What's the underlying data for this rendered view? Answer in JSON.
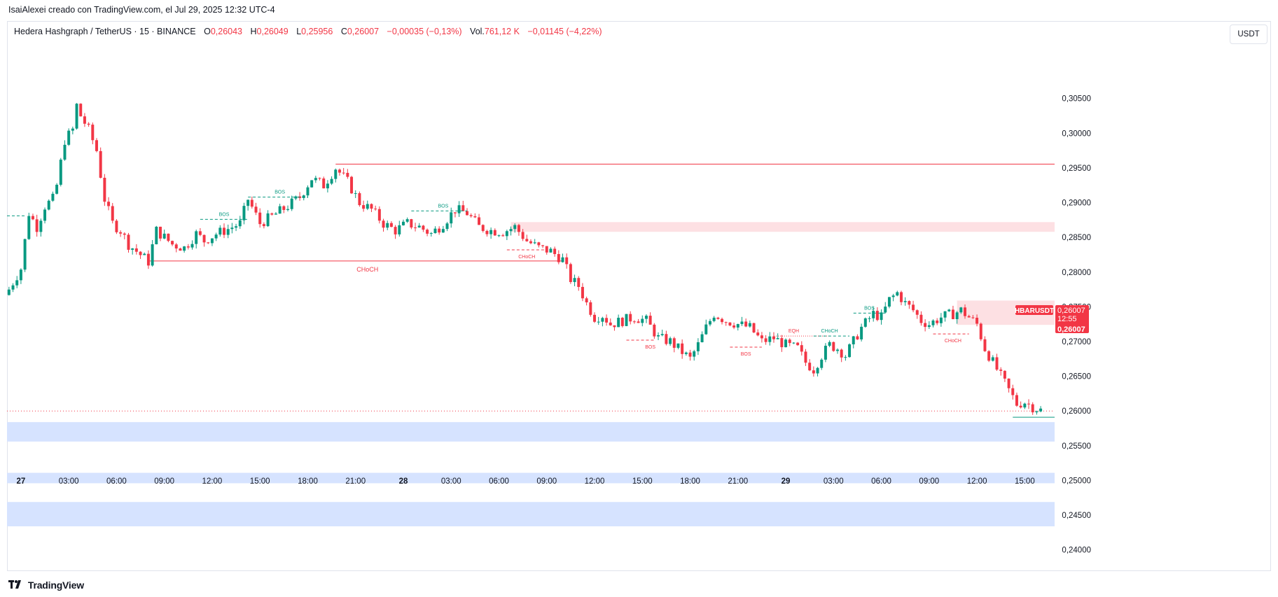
{
  "header": {
    "caption": "IsaiAlexei creado con TradingView.com, el Jul 29, 2025 12:32 UTC-4"
  },
  "legend": {
    "symbol": "Hedera Hashgraph / TetherUS · 15 · BINANCE",
    "open_label": "O",
    "open": "0,26043",
    "high_label": "H",
    "high": "0,26049",
    "low_label": "L",
    "low": "0,25956",
    "close_label": "C",
    "close": "0,26007",
    "change": "−0,00035 (−0,13%)",
    "vol_label": "Vol.",
    "vol": "761,12 K",
    "vol_change": "−0,01145 (−4,22%)"
  },
  "unit_button": "USDT",
  "price_tag": {
    "ticker": "HBARUSDT",
    "price": "0,26007",
    "countdown": "12:55",
    "last": "0,26007"
  },
  "footer": {
    "brand": "TradingView"
  },
  "colors": {
    "up": "#089981",
    "down": "#f23645",
    "supply_zone": "#fde0e3",
    "demand_zone": "#d6e3ff",
    "grid": "#ffffff"
  },
  "chart_data": {
    "type": "candlestick",
    "y_ticks": [
      "0,30500",
      "0,30000",
      "0,29500",
      "0,29000",
      "0,28500",
      "0,28000",
      "0,27500",
      "0,27000",
      "0,26500",
      "0,26000",
      "0,25500",
      "0,25000",
      "0,24500",
      "0,24000"
    ],
    "y_tick_values": [
      0.305,
      0.3,
      0.295,
      0.29,
      0.285,
      0.28,
      0.275,
      0.27,
      0.265,
      0.26,
      0.255,
      0.25,
      0.245,
      0.24
    ],
    "ylim": [
      0.23695,
      0.31615
    ],
    "x_ticks": [
      {
        "label": "27",
        "bold": true,
        "bar": 3
      },
      {
        "label": "03:00",
        "bar": 15
      },
      {
        "label": "06:00",
        "bar": 27
      },
      {
        "label": "09:00",
        "bar": 39
      },
      {
        "label": "12:00",
        "bar": 51
      },
      {
        "label": "15:00",
        "bar": 63
      },
      {
        "label": "18:00",
        "bar": 75
      },
      {
        "label": "21:00",
        "bar": 87
      },
      {
        "label": "28",
        "bold": true,
        "bar": 99
      },
      {
        "label": "03:00",
        "bar": 111
      },
      {
        "label": "06:00",
        "bar": 123
      },
      {
        "label": "09:00",
        "bar": 135
      },
      {
        "label": "12:00",
        "bar": 147
      },
      {
        "label": "15:00",
        "bar": 159
      },
      {
        "label": "18:00",
        "bar": 171
      },
      {
        "label": "21:00",
        "bar": 183
      },
      {
        "label": "29",
        "bold": true,
        "bar": 195
      },
      {
        "label": "03:00",
        "bar": 207
      },
      {
        "label": "06:00",
        "bar": 219
      },
      {
        "label": "09:00",
        "bar": 231
      },
      {
        "label": "12:00",
        "bar": 243
      },
      {
        "label": "15:00",
        "bar": 255
      }
    ],
    "bar_range": [
      0,
      263
    ],
    "close_path": [
      [
        0,
        0.2775
      ],
      [
        3,
        0.2805
      ],
      [
        5,
        0.2885
      ],
      [
        7,
        0.2865
      ],
      [
        9,
        0.2895
      ],
      [
        11,
        0.2905
      ],
      [
        12,
        0.2925
      ],
      [
        14,
        0.299
      ],
      [
        16,
        0.3005
      ],
      [
        17,
        0.304
      ],
      [
        18,
        0.3025
      ],
      [
        20,
        0.3005
      ],
      [
        22,
        0.2975
      ],
      [
        24,
        0.2905
      ],
      [
        26,
        0.287
      ],
      [
        28,
        0.286
      ],
      [
        30,
        0.284
      ],
      [
        32,
        0.283
      ],
      [
        35,
        0.2815
      ],
      [
        37,
        0.286
      ],
      [
        39,
        0.285
      ],
      [
        41,
        0.284
      ],
      [
        44,
        0.2835
      ],
      [
        47,
        0.2855
      ],
      [
        49,
        0.2845
      ],
      [
        52,
        0.2855
      ],
      [
        55,
        0.2862
      ],
      [
        58,
        0.287
      ],
      [
        60,
        0.2905
      ],
      [
        63,
        0.287
      ],
      [
        66,
        0.288
      ],
      [
        70,
        0.2895
      ],
      [
        73,
        0.2908
      ],
      [
        76,
        0.2935
      ],
      [
        79,
        0.2925
      ],
      [
        82,
        0.295
      ],
      [
        85,
        0.293
      ],
      [
        88,
        0.29
      ],
      [
        91,
        0.289
      ],
      [
        94,
        0.287
      ],
      [
        97,
        0.286
      ],
      [
        100,
        0.287
      ],
      [
        103,
        0.2865
      ],
      [
        106,
        0.2855
      ],
      [
        109,
        0.287
      ],
      [
        112,
        0.289
      ],
      [
        115,
        0.2885
      ],
      [
        118,
        0.2865
      ],
      [
        121,
        0.286
      ],
      [
        124,
        0.2858
      ],
      [
        127,
        0.2865
      ],
      [
        130,
        0.2845
      ],
      [
        133,
        0.2835
      ],
      [
        136,
        0.283
      ],
      [
        139,
        0.2818
      ],
      [
        141,
        0.279
      ],
      [
        143,
        0.278
      ],
      [
        145,
        0.2755
      ],
      [
        147,
        0.2735
      ],
      [
        149,
        0.2738
      ],
      [
        151,
        0.2725
      ],
      [
        154,
        0.273
      ],
      [
        157,
        0.2735
      ],
      [
        160,
        0.273
      ],
      [
        163,
        0.2705
      ],
      [
        166,
        0.27
      ],
      [
        169,
        0.2685
      ],
      [
        171,
        0.2675
      ],
      [
        173,
        0.2695
      ],
      [
        175,
        0.272
      ],
      [
        177,
        0.274
      ],
      [
        180,
        0.273
      ],
      [
        183,
        0.2725
      ],
      [
        186,
        0.272
      ],
      [
        189,
        0.27
      ],
      [
        192,
        0.2705
      ],
      [
        195,
        0.2695
      ],
      [
        198,
        0.269
      ],
      [
        200,
        0.267
      ],
      [
        202,
        0.266
      ],
      [
        204,
        0.268
      ],
      [
        206,
        0.2695
      ],
      [
        208,
        0.269
      ],
      [
        210,
        0.268
      ],
      [
        212,
        0.27
      ],
      [
        214,
        0.272
      ],
      [
        217,
        0.274
      ],
      [
        219,
        0.2735
      ],
      [
        221,
        0.276
      ],
      [
        223,
        0.277
      ],
      [
        225,
        0.2755
      ],
      [
        227,
        0.2745
      ],
      [
        229,
        0.273
      ],
      [
        231,
        0.2725
      ],
      [
        234,
        0.2735
      ],
      [
        237,
        0.274
      ],
      [
        239,
        0.2745
      ],
      [
        241,
        0.2735
      ],
      [
        243,
        0.2725
      ],
      [
        245,
        0.269
      ],
      [
        247,
        0.267
      ],
      [
        249,
        0.265
      ],
      [
        251,
        0.263
      ],
      [
        253,
        0.261
      ],
      [
        255,
        0.2613
      ],
      [
        257,
        0.2606
      ],
      [
        259,
        0.2601
      ]
    ],
    "zones": [
      {
        "kind": "supply",
        "from_bar": 126,
        "to_bar": 263,
        "top": 0.2872,
        "bottom": 0.2858
      },
      {
        "kind": "supply",
        "from_bar": 238,
        "to_bar": 263,
        "top": 0.2759,
        "bottom": 0.2724
      },
      {
        "kind": "demand",
        "from_bar": 0,
        "to_bar": 263,
        "top": 0.2584,
        "bottom": 0.2556
      },
      {
        "kind": "demand",
        "from_bar": 0,
        "to_bar": 263,
        "top": 0.2511,
        "bottom": 0.2496
      },
      {
        "kind": "demand",
        "from_bar": 0,
        "to_bar": 263,
        "top": 0.2469,
        "bottom": 0.2434
      }
    ],
    "levels": [
      {
        "kind": "line",
        "from_bar": 82,
        "to_bar": 263,
        "price": 0.29555,
        "color": "#f23645"
      },
      {
        "kind": "line",
        "from_bar": 35,
        "to_bar": 139,
        "price": 0.2816,
        "color": "#f23645"
      },
      {
        "kind": "line",
        "from_bar": 252,
        "to_bar": 263,
        "price": 0.2591,
        "color": "#089981"
      },
      {
        "kind": "dotted",
        "from_bar": 0,
        "to_bar": 263,
        "price": 0.26,
        "color": "#f23645"
      },
      {
        "kind": "dashed",
        "from_bar": 0,
        "to_bar": 4,
        "price": 0.2881,
        "color": "#089981"
      }
    ],
    "annotations": [
      {
        "text": "CHoCH",
        "bar": 90,
        "price": 0.2815,
        "color": "#f23645",
        "size": 9,
        "line_from": 35,
        "line_to": 139,
        "line_price": 0.2816,
        "style": "none",
        "label_below": true
      },
      {
        "text": "BOS",
        "bar": 54,
        "price": 0.2876,
        "color": "#089981",
        "size": 7,
        "line_from": 48,
        "line_to": 60,
        "line_price": 0.2876,
        "style": "dashed"
      },
      {
        "text": "BOS",
        "bar": 68,
        "price": 0.2908,
        "color": "#089981",
        "size": 7,
        "line_from": 60,
        "line_to": 75,
        "line_price": 0.2908,
        "style": "dashed"
      },
      {
        "text": "BOS",
        "bar": 109,
        "price": 0.2888,
        "color": "#089981",
        "size": 7,
        "line_from": 101,
        "line_to": 115,
        "line_price": 0.2888,
        "style": "dashed"
      },
      {
        "text": "CHoCH",
        "bar": 130,
        "price": 0.2832,
        "color": "#f23645",
        "size": 7,
        "line_from": 125,
        "line_to": 135,
        "line_price": 0.2832,
        "style": "dashed",
        "label_below": true
      },
      {
        "text": "BOS",
        "bar": 161,
        "price": 0.2702,
        "color": "#f23645",
        "size": 7,
        "line_from": 155,
        "line_to": 162,
        "line_price": 0.2702,
        "style": "dashed",
        "label_below": true
      },
      {
        "text": "BOS",
        "bar": 185,
        "price": 0.2692,
        "color": "#f23645",
        "size": 7,
        "line_from": 181,
        "line_to": 189,
        "line_price": 0.2692,
        "style": "dashed",
        "label_below": true
      },
      {
        "text": "EQH",
        "bar": 197,
        "price": 0.2708,
        "color": "#f23645",
        "size": 7,
        "line_from": 192,
        "line_to": 206,
        "line_price": 0.2708,
        "style": "dotted"
      },
      {
        "text": "CHoCH",
        "bar": 206,
        "price": 0.2708,
        "color": "#089981",
        "size": 7,
        "line_from": 202,
        "line_to": 211,
        "line_price": 0.2708,
        "style": "dashed"
      },
      {
        "text": "BOS",
        "bar": 216,
        "price": 0.2741,
        "color": "#089981",
        "size": 7,
        "line_from": 212,
        "line_to": 220,
        "line_price": 0.2741,
        "style": "dashed"
      },
      {
        "text": "CHoCH",
        "bar": 237,
        "price": 0.2711,
        "color": "#f23645",
        "size": 7,
        "line_from": 232,
        "line_to": 241,
        "line_price": 0.2711,
        "style": "dashed",
        "label_below": true
      }
    ]
  }
}
